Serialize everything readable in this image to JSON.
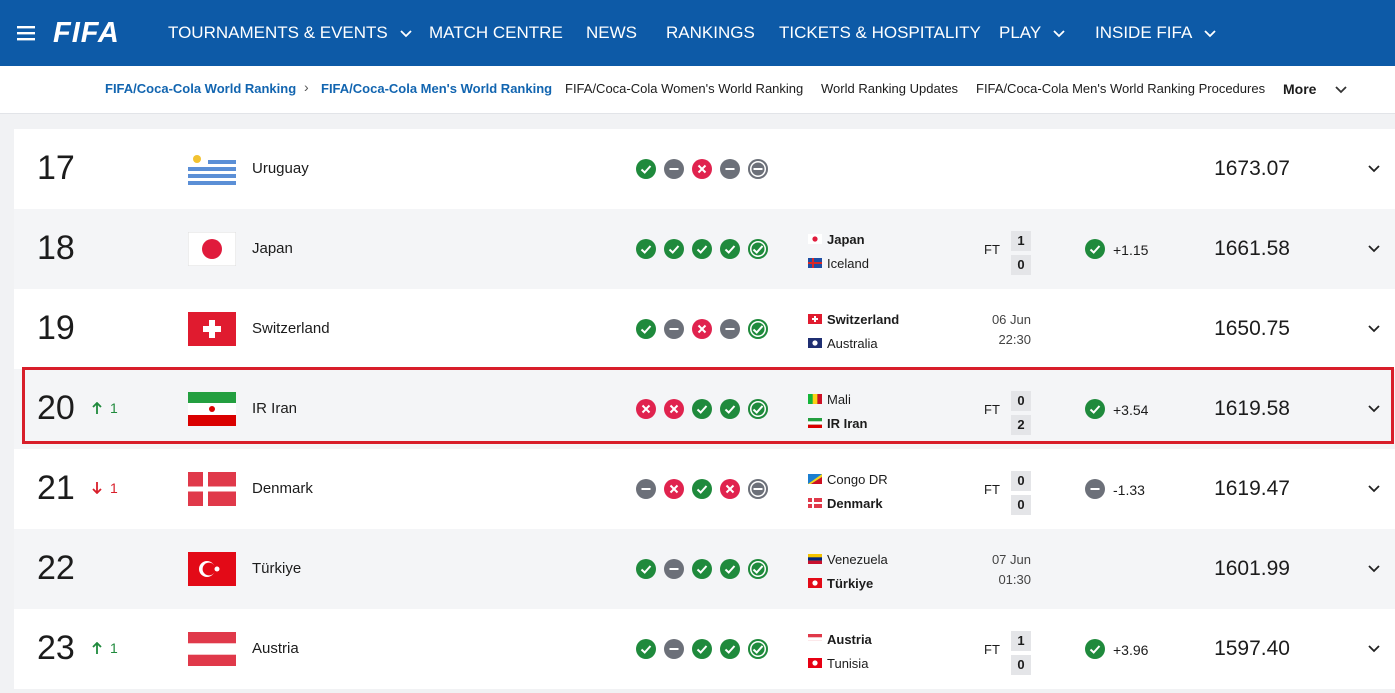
{
  "nav": {
    "logo": "FIFA",
    "items": [
      "TOURNAMENTS & EVENTS",
      "MATCH CENTRE",
      "NEWS",
      "RANKINGS",
      "TICKETS & HOSPITALITY",
      "PLAY",
      "INSIDE FIFA"
    ],
    "dropdown": [
      true,
      false,
      false,
      false,
      false,
      true,
      true
    ]
  },
  "breadcrumbs": {
    "items": [
      "FIFA/Coca-Cola World Ranking",
      "FIFA/Coca-Cola Men's World Ranking",
      "FIFA/Coca-Cola Women's World Ranking",
      "World Ranking Updates",
      "FIFA/Coca-Cola Men's World Ranking Procedures"
    ],
    "more": "More"
  },
  "rows": [
    {
      "rank": 17,
      "team": "Uruguay",
      "form": [
        "W",
        "D",
        "L",
        "D",
        "D"
      ],
      "points": "1673.07"
    },
    {
      "rank": 18,
      "team": "Japan",
      "form": [
        "W",
        "W",
        "W",
        "W",
        "W"
      ],
      "match": {
        "home": "Japan",
        "away": "Iceland",
        "bold": "home",
        "status": "FT",
        "score": [
          1,
          0
        ],
        "result": "W",
        "change": "+1.15"
      },
      "points": "1661.58"
    },
    {
      "rank": 19,
      "team": "Switzerland",
      "form": [
        "W",
        "D",
        "L",
        "D",
        "W"
      ],
      "match": {
        "home": "Switzerland",
        "away": "Australia",
        "bold": "home",
        "date": "06 Jun",
        "time": "22:30"
      },
      "points": "1650.75"
    },
    {
      "rank": 20,
      "move": {
        "dir": "up",
        "value": 1
      },
      "team": "IR Iran",
      "form": [
        "L",
        "L",
        "W",
        "W",
        "W"
      ],
      "match": {
        "home": "Mali",
        "away": "IR Iran",
        "bold": "away",
        "status": "FT",
        "score": [
          0,
          2
        ],
        "result": "W",
        "change": "+3.54"
      },
      "points": "1619.58",
      "highlight": true
    },
    {
      "rank": 21,
      "move": {
        "dir": "down",
        "value": 1
      },
      "team": "Denmark",
      "form": [
        "D",
        "L",
        "W",
        "L",
        "D"
      ],
      "match": {
        "home": "Congo DR",
        "away": "Denmark",
        "bold": "away",
        "status": "FT",
        "score": [
          0,
          0
        ],
        "result": "D",
        "change": "-1.33"
      },
      "points": "1619.47"
    },
    {
      "rank": 22,
      "team": "Türkiye",
      "form": [
        "W",
        "D",
        "W",
        "W",
        "W"
      ],
      "match": {
        "home": "Venezuela",
        "away": "Türkiye",
        "bold": "away",
        "date": "07 Jun",
        "time": "01:30"
      },
      "points": "1601.99"
    },
    {
      "rank": 23,
      "move": {
        "dir": "up",
        "value": 1
      },
      "team": "Austria",
      "form": [
        "W",
        "D",
        "W",
        "W",
        "W"
      ],
      "match": {
        "home": "Austria",
        "away": "Tunisia",
        "bold": "home",
        "status": "FT",
        "score": [
          1,
          0
        ],
        "result": "W",
        "change": "+3.96"
      },
      "points": "1597.40"
    }
  ]
}
